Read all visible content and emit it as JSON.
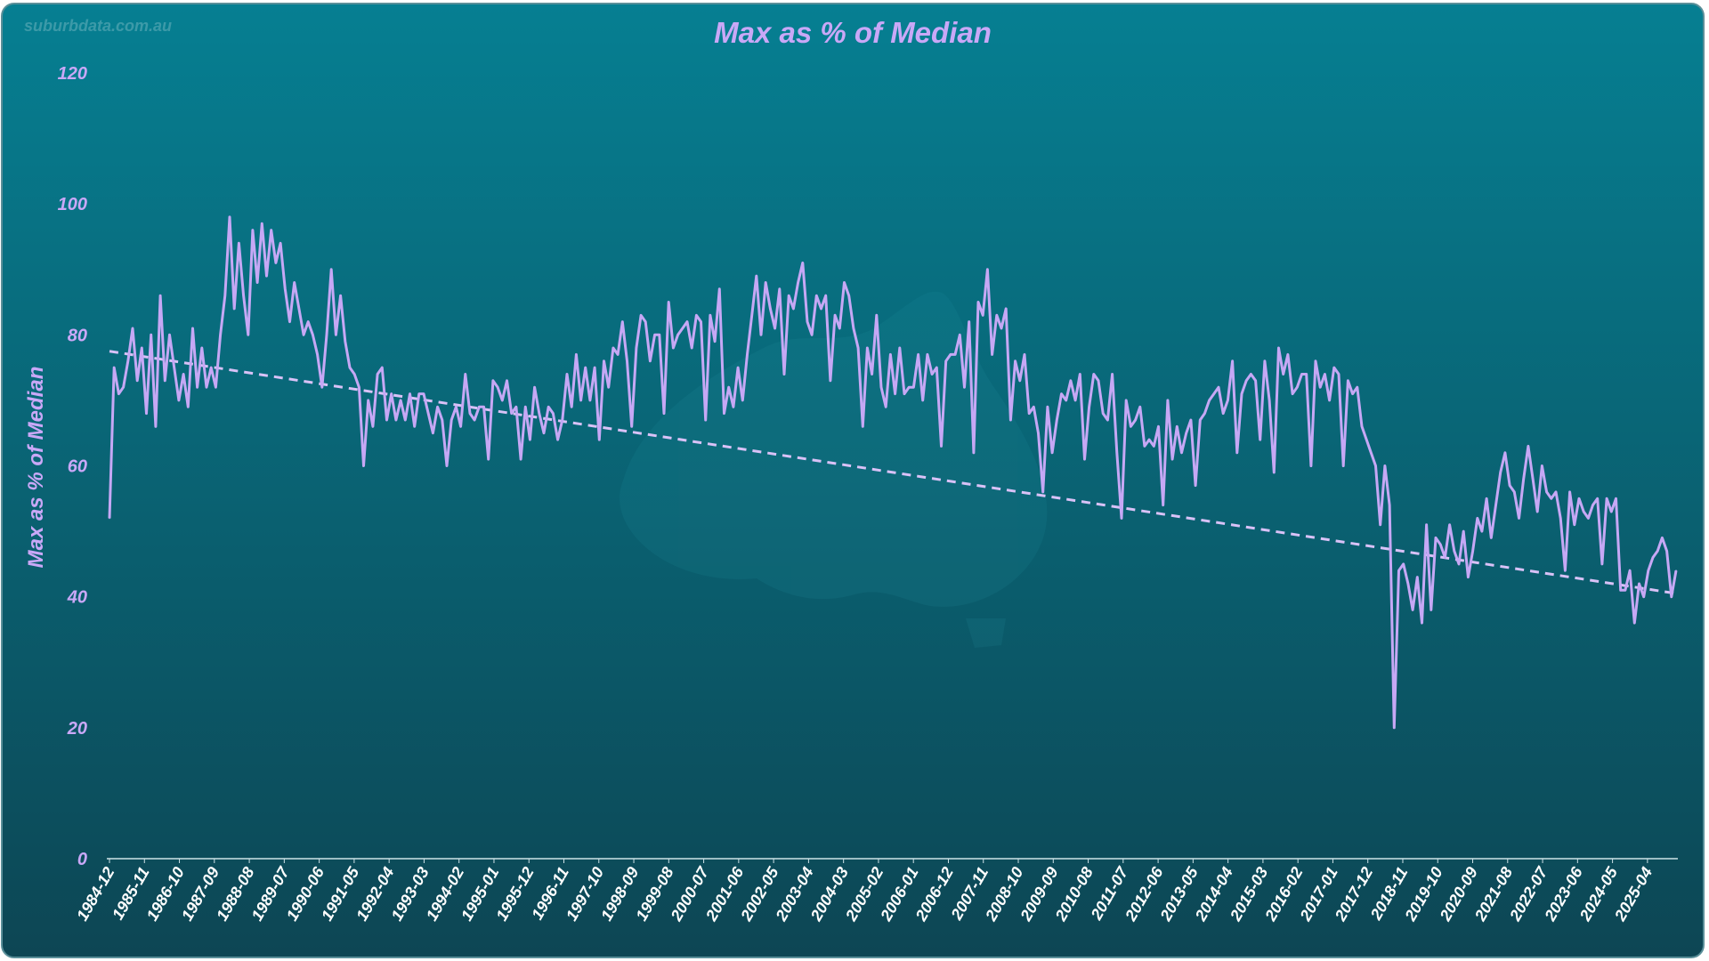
{
  "watermark": "suburbdata.com.au",
  "colors": {
    "line": "#c6a8f5",
    "trend": "#d9c2f7",
    "text": "#c9a8f7",
    "tick_text": "#ffffff",
    "bg_top": "#067f92",
    "bg_bottom": "#0d4654"
  },
  "chart_data": {
    "type": "line",
    "title": "Max as % of Median",
    "xlabel": "",
    "ylabel": "Max as % of Median",
    "ylim": [
      0,
      120
    ],
    "yticks": [
      0,
      20,
      40,
      60,
      80,
      100,
      120
    ],
    "grid": false,
    "legend": "none",
    "x_start": "1984-12",
    "x_end": "2026-01",
    "x_tick_labels": [
      "1984-12",
      "1985-11",
      "1986-10",
      "1987-09",
      "1988-08",
      "1989-07",
      "1990-06",
      "1991-05",
      "1992-04",
      "1993-03",
      "1994-02",
      "1995-01",
      "1995-12",
      "1996-11",
      "1997-10",
      "1998-09",
      "1999-08",
      "2000-07",
      "2001-06",
      "2002-05",
      "2003-04",
      "2004-03",
      "2005-02",
      "2006-01",
      "2006-12",
      "2007-11",
      "2008-10",
      "2009-09",
      "2010-08",
      "2011-07",
      "2012-06",
      "2013-05",
      "2014-04",
      "2015-03",
      "2016-02",
      "2017-01",
      "2017-12",
      "2018-11",
      "2019-10",
      "2020-09",
      "2021-08",
      "2022-07",
      "2023-06",
      "2024-05",
      "2025-04"
    ],
    "series": [
      {
        "values": [
          52,
          75,
          71,
          72,
          76,
          81,
          73,
          78,
          68,
          80,
          66,
          86,
          73,
          80,
          75,
          70,
          74,
          69,
          81,
          72,
          78,
          72,
          75,
          72,
          80,
          86,
          98,
          84,
          94,
          86,
          80,
          96,
          88,
          97,
          89,
          96,
          91,
          94,
          87,
          82,
          88,
          84,
          80,
          82,
          80,
          77,
          72,
          80,
          90,
          80,
          86,
          79,
          75,
          74,
          72,
          60,
          70,
          66,
          74,
          75,
          67,
          71,
          67,
          70,
          67,
          71,
          66,
          71,
          71,
          68,
          65,
          69,
          67,
          60,
          67,
          69,
          66,
          74,
          68,
          67,
          69,
          69,
          61,
          73,
          72,
          70,
          73,
          68,
          69,
          61,
          69,
          64,
          72,
          68,
          65,
          69,
          68,
          64,
          67,
          74,
          69,
          77,
          70,
          75,
          70,
          75,
          64,
          76,
          72,
          78,
          77,
          82,
          76,
          66,
          78,
          83,
          82,
          76,
          80,
          80,
          68,
          85,
          78,
          80,
          81,
          82,
          78,
          83,
          82,
          67,
          83,
          79,
          87,
          68,
          72,
          69,
          75,
          70,
          77,
          83,
          89,
          80,
          88,
          84,
          81,
          87,
          74,
          86,
          84,
          88,
          91,
          82,
          80,
          86,
          84,
          86,
          73,
          83,
          81,
          88,
          86,
          81,
          78,
          66,
          78,
          74,
          83,
          72,
          69,
          77,
          71,
          78,
          71,
          72,
          72,
          77,
          70,
          77,
          74,
          75,
          63,
          76,
          77,
          77,
          80,
          72,
          82,
          62,
          85,
          83,
          90,
          77,
          83,
          81,
          84,
          67,
          76,
          73,
          77,
          68,
          69,
          65,
          56,
          69,
          62,
          67,
          71,
          70,
          73,
          70,
          74,
          61,
          69,
          74,
          73,
          68,
          67,
          74,
          62,
          52,
          70,
          66,
          67,
          69,
          63,
          64,
          63,
          66,
          54,
          70,
          61,
          66,
          62,
          65,
          67,
          57,
          67,
          68,
          70,
          71,
          72,
          68,
          70,
          76,
          62,
          71,
          73,
          74,
          73,
          64,
          76,
          70,
          59,
          78,
          74,
          77,
          71,
          72,
          74,
          74,
          60,
          76,
          72,
          74,
          70,
          75,
          74,
          60,
          73,
          71,
          72,
          66,
          64,
          62,
          60,
          51,
          60,
          54,
          20,
          44,
          45,
          42,
          38,
          43,
          36,
          51,
          38,
          49,
          48,
          46,
          51,
          47,
          45,
          50,
          43,
          47,
          52,
          50,
          55,
          49,
          54,
          59,
          62,
          57,
          56,
          52,
          58,
          63,
          58,
          53,
          60,
          56,
          55,
          56,
          52,
          44,
          56,
          51,
          55,
          53,
          52,
          54,
          55,
          45,
          55,
          53,
          55,
          41,
          41,
          44,
          36,
          42,
          40,
          44,
          46,
          47,
          49,
          47,
          40,
          44
        ],
        "trend": [
          77.5,
          40.5
        ]
      }
    ]
  }
}
